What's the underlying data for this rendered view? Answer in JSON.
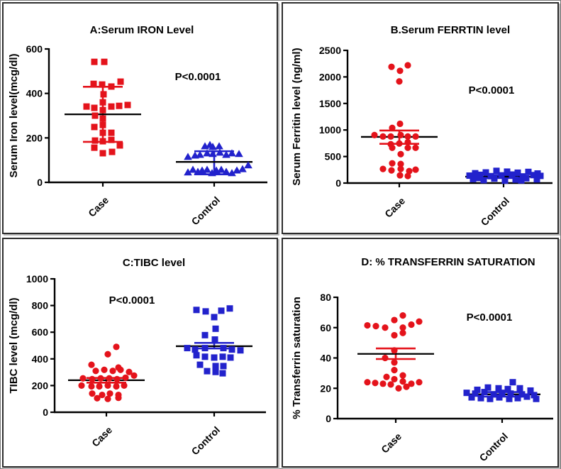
{
  "figure": {
    "description": "Four panel dot-plot figure comparing iron study parameters between Case and Control groups"
  },
  "colors": {
    "case": "#e4131b",
    "control": "#2222cc",
    "axis": "#000000",
    "mean_line": "#000000"
  },
  "chart_data": [
    {
      "type": "scatter",
      "panel": "A",
      "title": "A:Serum IRON Level",
      "ylabel": "Serum Iron level(mcg/dl)",
      "annotation": "P<0.0001",
      "categories": [
        "Case",
        "Control"
      ],
      "ylim": [
        0,
        600
      ],
      "yticks": [
        0,
        200,
        400,
        600
      ],
      "grid": false,
      "series": [
        {
          "name": "Case",
          "marker": "square",
          "color": "#e4131b",
          "mean": 306,
          "err_low": 182,
          "err_high": 430,
          "points": [
            [
              -12,
              542
            ],
            [
              2,
              542
            ],
            [
              -13,
              443
            ],
            [
              -1,
              440
            ],
            [
              12,
              431
            ],
            [
              25,
              453
            ],
            [
              1,
              396
            ],
            [
              0,
              360
            ],
            [
              -23,
              341
            ],
            [
              -12,
              335
            ],
            [
              0,
              325
            ],
            [
              12,
              341
            ],
            [
              23,
              344
            ],
            [
              35,
              348
            ],
            [
              -11,
              300
            ],
            [
              0,
              287
            ],
            [
              0,
              258
            ],
            [
              -12,
              249
            ],
            [
              0,
              223
            ],
            [
              12,
              223
            ],
            [
              -11,
              188
            ],
            [
              0,
              185
            ],
            [
              12,
              191
            ],
            [
              -12,
              156
            ],
            [
              24,
              166
            ],
            [
              0,
              131
            ],
            [
              13,
              137
            ]
          ]
        },
        {
          "name": "Control",
          "marker": "triangle",
          "color": "#2222cc",
          "mean": 92,
          "err_low": 36,
          "err_high": 140,
          "points": [
            [
              -13,
              163
            ],
            [
              -6,
              169
            ],
            [
              -2,
              160
            ],
            [
              7,
              163
            ],
            [
              -37,
              115
            ],
            [
              -27,
              121
            ],
            [
              -20,
              124
            ],
            [
              -10,
              131
            ],
            [
              -2,
              128
            ],
            [
              8,
              134
            ],
            [
              17,
              124
            ],
            [
              25,
              131
            ],
            [
              35,
              128
            ],
            [
              -37,
              45
            ],
            [
              -30,
              57
            ],
            [
              -23,
              48
            ],
            [
              -17,
              54
            ],
            [
              -10,
              57
            ],
            [
              -3,
              42
            ],
            [
              3,
              54
            ],
            [
              10,
              57
            ],
            [
              17,
              48
            ],
            [
              25,
              42
            ],
            [
              32,
              54
            ],
            [
              40,
              60
            ],
            [
              48,
              77
            ]
          ]
        }
      ]
    },
    {
      "type": "scatter",
      "panel": "B",
      "title": "B.Serum FERRTIN level",
      "ylabel": "Serum Ferritin level (ng/ml)",
      "annotation": "P<0.0001",
      "categories": [
        "Case",
        "Control"
      ],
      "ylim": [
        0,
        2500
      ],
      "yticks": [
        0,
        500,
        1000,
        1500,
        2000,
        2500
      ],
      "grid": false,
      "series": [
        {
          "name": "Case",
          "marker": "circle",
          "color": "#e4131b",
          "mean": 870,
          "err_low": 740,
          "err_high": 990,
          "points": [
            [
              -11,
              2190
            ],
            [
              12,
              2220
            ],
            [
              1,
              2115
            ],
            [
              0,
              1915
            ],
            [
              -10,
              1040
            ],
            [
              1,
              1117
            ],
            [
              -35,
              904
            ],
            [
              -23,
              878
            ],
            [
              -12,
              878
            ],
            [
              2,
              904
            ],
            [
              12,
              878
            ],
            [
              23,
              878
            ],
            [
              -12,
              732
            ],
            [
              0,
              745
            ],
            [
              12,
              771
            ],
            [
              -10,
              665
            ],
            [
              12,
              665
            ],
            [
              23,
              665
            ],
            [
              2,
              545
            ],
            [
              -10,
              372
            ],
            [
              2,
              359
            ],
            [
              -23,
              266
            ],
            [
              -11,
              239
            ],
            [
              2,
              266
            ],
            [
              14,
              226
            ],
            [
              23,
              253
            ],
            [
              1,
              146
            ],
            [
              12,
              133
            ]
          ]
        },
        {
          "name": "Control",
          "marker": "square",
          "color": "#2222cc",
          "mean": 120,
          "err_low": 95,
          "err_high": 150,
          "points": [
            [
              -40,
              185
            ],
            [
              -25,
              200
            ],
            [
              -10,
              230
            ],
            [
              5,
              215
            ],
            [
              20,
              195
            ],
            [
              35,
              210
            ],
            [
              48,
              180
            ],
            [
              -48,
              140
            ],
            [
              -33,
              155
            ],
            [
              -18,
              130
            ],
            [
              -3,
              145
            ],
            [
              12,
              160
            ],
            [
              27,
              125
            ],
            [
              42,
              150
            ],
            [
              52,
              135
            ],
            [
              -43,
              75
            ],
            [
              -28,
              55
            ],
            [
              -13,
              85
            ],
            [
              2,
              45
            ],
            [
              17,
              65
            ],
            [
              32,
              90
            ],
            [
              47,
              70
            ],
            [
              -35,
              95
            ],
            [
              25,
              50
            ]
          ]
        }
      ]
    },
    {
      "type": "scatter",
      "panel": "C",
      "title": "C:TIBC level",
      "ylabel": "TIBC level (mcg/dl)",
      "annotation": "P<0.0001",
      "categories": [
        "Case",
        "Control"
      ],
      "ylim": [
        0,
        1000
      ],
      "yticks": [
        0,
        200,
        400,
        600,
        800,
        1000
      ],
      "grid": false,
      "series": [
        {
          "name": "Case",
          "marker": "circle",
          "color": "#e4131b",
          "mean": 240,
          "err_low": 222,
          "err_high": 257,
          "points": [
            [
              14,
              490
            ],
            [
              2,
              435
            ],
            [
              -21,
              356
            ],
            [
              17,
              335
            ],
            [
              -15,
              310
            ],
            [
              -3,
              318
            ],
            [
              9,
              310
            ],
            [
              20,
              318
            ],
            [
              32,
              302
            ],
            [
              -33,
              254
            ],
            [
              -20,
              248
            ],
            [
              -8,
              254
            ],
            [
              4,
              254
            ],
            [
              15,
              248
            ],
            [
              27,
              259
            ],
            [
              39,
              275
            ],
            [
              -35,
              200
            ],
            [
              -21,
              194
            ],
            [
              -10,
              194
            ],
            [
              2,
              200
            ],
            [
              14,
              194
            ],
            [
              25,
              200
            ],
            [
              -20,
              140
            ],
            [
              -6,
              130
            ],
            [
              5,
              140
            ],
            [
              17,
              130
            ],
            [
              -13,
              105
            ],
            [
              2,
              100
            ],
            [
              17,
              108
            ]
          ]
        },
        {
          "name": "Control",
          "marker": "square",
          "color": "#2222cc",
          "mean": 495,
          "err_low": 478,
          "err_high": 520,
          "points": [
            [
              -25,
              767
            ],
            [
              -12,
              756
            ],
            [
              10,
              761
            ],
            [
              22,
              778
            ],
            [
              0,
              713
            ],
            [
              2,
              626
            ],
            [
              -13,
              578
            ],
            [
              1,
              545
            ],
            [
              -38,
              481
            ],
            [
              -27,
              470
            ],
            [
              -13,
              481
            ],
            [
              13,
              481
            ],
            [
              25,
              470
            ],
            [
              37,
              464
            ],
            [
              -25,
              427
            ],
            [
              -13,
              416
            ],
            [
              0,
              410
            ],
            [
              12,
              416
            ],
            [
              23,
              410
            ],
            [
              -20,
              356
            ],
            [
              2,
              346
            ],
            [
              13,
              346
            ],
            [
              -10,
              308
            ],
            [
              2,
              302
            ],
            [
              12,
              292
            ]
          ]
        }
      ]
    },
    {
      "type": "scatter",
      "panel": "D",
      "title": "D: % TRANSFERRIN SATURATION",
      "ylabel": "% Transferrin saturation",
      "annotation": "P<0.0001",
      "categories": [
        "Case",
        "Control"
      ],
      "ylim": [
        0,
        80
      ],
      "yticks": [
        0,
        20,
        40,
        60,
        80
      ],
      "grid": false,
      "series": [
        {
          "name": "Case",
          "marker": "circle",
          "color": "#e4131b",
          "mean": 42.7,
          "err_low": 39.3,
          "err_high": 46.3,
          "points": [
            [
              10,
              68
            ],
            [
              -2,
              65
            ],
            [
              33,
              64
            ],
            [
              -40,
              61.5
            ],
            [
              -28,
              61
            ],
            [
              -15,
              60
            ],
            [
              10,
              60
            ],
            [
              22,
              62
            ],
            [
              -2,
              55
            ],
            [
              10,
              56.5
            ],
            [
              -2,
              45
            ],
            [
              -15,
              40
            ],
            [
              -2,
              37
            ],
            [
              -2,
              32
            ],
            [
              10,
              28.5
            ],
            [
              -13,
              27.5
            ],
            [
              -2,
              26
            ],
            [
              10,
              24.5
            ],
            [
              -40,
              24
            ],
            [
              -29,
              23.5
            ],
            [
              -18,
              23
            ],
            [
              -7,
              22.5
            ],
            [
              22,
              23
            ],
            [
              33,
              24
            ],
            [
              4,
              20
            ],
            [
              15,
              21
            ]
          ]
        },
        {
          "name": "Control",
          "marker": "square",
          "color": "#2222cc",
          "mean": 16,
          "err_low": 14.5,
          "err_high": 17.5,
          "points": [
            [
              15,
              24
            ],
            [
              -35,
              19
            ],
            [
              -20,
              20.5
            ],
            [
              -5,
              20
            ],
            [
              8,
              19.5
            ],
            [
              25,
              20
            ],
            [
              40,
              18.5
            ],
            [
              -50,
              17
            ],
            [
              -38,
              16.5
            ],
            [
              -25,
              17.5
            ],
            [
              -12,
              16
            ],
            [
              0,
              17
            ],
            [
              12,
              16.5
            ],
            [
              28,
              16
            ],
            [
              45,
              15.5
            ],
            [
              -43,
              14
            ],
            [
              -30,
              13.5
            ],
            [
              -17,
              13
            ],
            [
              -4,
              14
            ],
            [
              10,
              13
            ],
            [
              22,
              13.5
            ],
            [
              35,
              14.5
            ],
            [
              48,
              13
            ]
          ]
        }
      ]
    }
  ]
}
